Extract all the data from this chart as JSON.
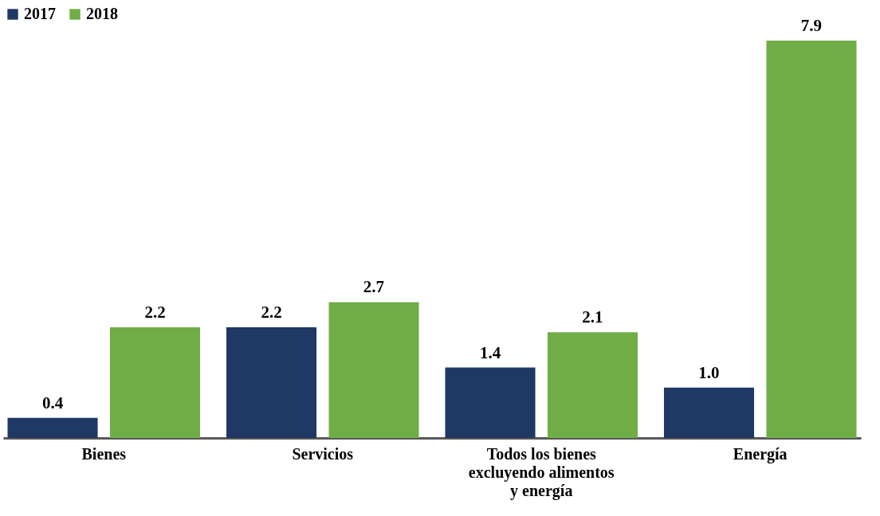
{
  "chart_data": {
    "type": "bar",
    "categories": [
      "Bienes",
      "Servicios",
      "Todos los bienes excluyendo alimentos y energía",
      "Energía"
    ],
    "series": [
      {
        "name": "2017",
        "color": "#1f3864",
        "values": [
          0.4,
          2.2,
          1.4,
          1.0
        ],
        "value_labels": [
          "0.4",
          "2.2",
          "1.4",
          "1.0"
        ]
      },
      {
        "name": "2018",
        "color": "#70ad47",
        "values": [
          2.2,
          2.7,
          2.1,
          7.9
        ],
        "value_labels": [
          "2.2",
          "2.7",
          "2.1",
          "7.9"
        ]
      }
    ],
    "legend": "top left",
    "grid": false
  }
}
